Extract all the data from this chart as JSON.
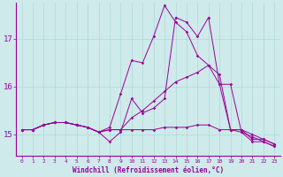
{
  "xlabel": "Windchill (Refroidissement éolien,°C)",
  "bg_color": "#ceeaea",
  "line_color": "#990099",
  "xlim": [
    -0.5,
    23.5
  ],
  "ylim": [
    14.55,
    17.75
  ],
  "yticks": [
    15,
    16,
    17
  ],
  "xticks": [
    0,
    1,
    2,
    3,
    4,
    5,
    6,
    7,
    8,
    9,
    10,
    11,
    12,
    13,
    14,
    15,
    16,
    17,
    18,
    19,
    20,
    21,
    22,
    23
  ],
  "series": [
    [
      15.1,
      15.1,
      15.2,
      15.25,
      15.25,
      15.2,
      15.15,
      15.05,
      14.85,
      15.05,
      15.75,
      15.45,
      15.55,
      15.75,
      17.45,
      17.35,
      17.05,
      17.45,
      16.05,
      16.05,
      15.05,
      14.85,
      14.85,
      14.75
    ],
    [
      15.1,
      15.1,
      15.2,
      15.25,
      15.25,
      15.2,
      15.15,
      15.05,
      15.1,
      15.1,
      15.35,
      15.5,
      15.7,
      15.9,
      16.1,
      16.2,
      16.3,
      16.45,
      16.25,
      15.1,
      15.1,
      15.0,
      14.9,
      14.8
    ],
    [
      15.1,
      15.1,
      15.2,
      15.25,
      15.25,
      15.2,
      15.15,
      15.05,
      15.1,
      15.1,
      15.1,
      15.1,
      15.1,
      15.15,
      15.15,
      15.15,
      15.2,
      15.2,
      15.1,
      15.1,
      15.1,
      14.9,
      14.9,
      14.8
    ],
    [
      15.1,
      15.1,
      15.2,
      15.25,
      15.25,
      15.2,
      15.15,
      15.05,
      15.15,
      15.85,
      16.55,
      16.5,
      17.05,
      17.7,
      17.35,
      17.15,
      16.65,
      16.45,
      16.05,
      15.1,
      15.05,
      14.95,
      14.85,
      14.75
    ]
  ]
}
